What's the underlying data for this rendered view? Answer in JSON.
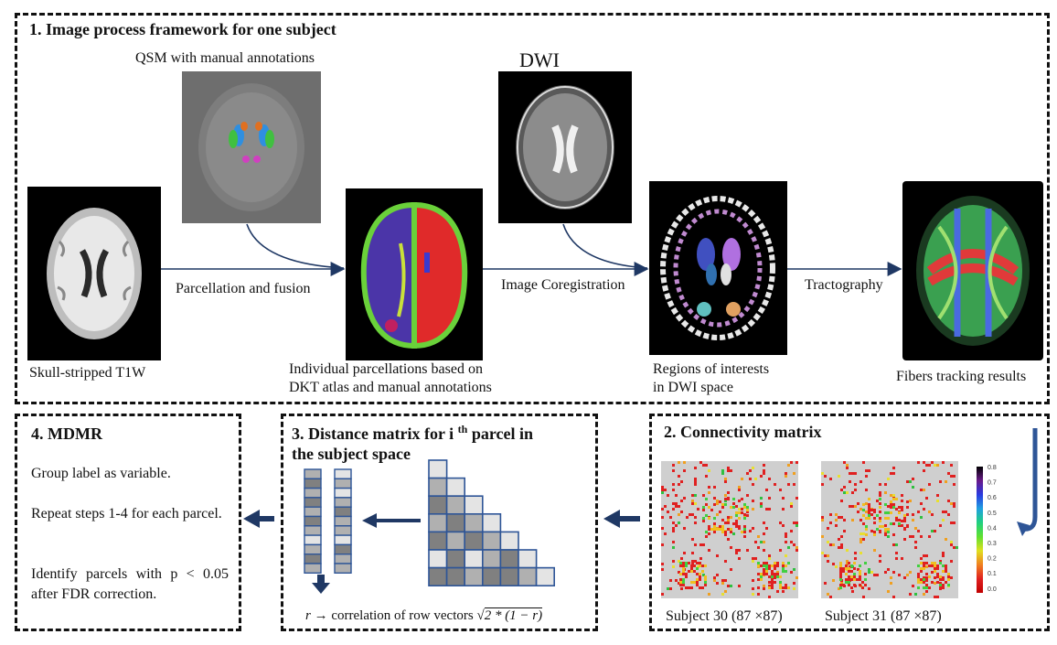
{
  "panel1": {
    "title": "1. Image process framework for one subject",
    "qsm_label": "QSM with manual annotations",
    "dwi_label": "DWI",
    "t1_caption": "Skull-stripped T1W",
    "step_parcellation": "Parcellation and fusion",
    "parcellation_caption_1": "Individual parcellations based on",
    "parcellation_caption_2": "DKT atlas and manual annotations",
    "step_coregistration": "Image Coregistration",
    "roi_caption_1": "Regions of interests",
    "roi_caption_2": "in DWI space",
    "step_tractography": "Tractography",
    "fibers_caption": "Fibers tracking results"
  },
  "panel2": {
    "title": "2. Connectivity matrix",
    "subject_a": "Subject 30 (87 ×87)",
    "subject_b": "Subject 31 (87 ×87)",
    "colorbar_ticks": [
      "0.8",
      "0.7",
      "0.6",
      "0.5",
      "0.4",
      "0.3",
      "0.2",
      "0.1",
      "0.0"
    ]
  },
  "panel3": {
    "title_1": "3. Distance matrix for i",
    "title_sup": "th",
    "title_1b": " parcel in",
    "title_2": "the subject space",
    "formula_r": "r",
    "formula_text": " → correlation of row vectors ",
    "formula_sqrt": "2 * (1 − r)"
  },
  "panel4": {
    "title": "4. MDMR",
    "line1": "Group label as variable.",
    "line2": "Repeat steps 1-4 for each parcel.",
    "line3": "Identify parcels with p < 0.05 after FDR correction."
  },
  "colors": {
    "arrow_dark": "#1f3864",
    "matrix_border": "#2e5597",
    "cell_dark": "#808080",
    "cell_mid": "#b0b0b0",
    "cell_light": "#e4e4e4"
  }
}
